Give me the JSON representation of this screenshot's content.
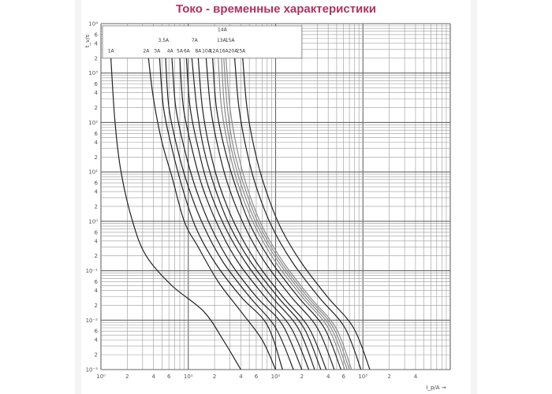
{
  "title": "Токо - временные характеристики",
  "chart_data": {
    "type": "line",
    "title": "Токо - временные характеристики",
    "xlabel": "I_p/A",
    "ylabel": "t_v/s",
    "x_scale": "log",
    "y_scale": "log",
    "xlim": [
      1,
      10000
    ],
    "ylim": [
      0.001,
      10000
    ],
    "grid": true,
    "x_ticks": [
      {
        "v": 1,
        "t": "10⁰"
      },
      {
        "v": 2,
        "t": "2"
      },
      {
        "v": 4,
        "t": "4"
      },
      {
        "v": 6,
        "t": "6"
      },
      {
        "v": 10,
        "t": "10¹"
      },
      {
        "v": 20,
        "t": "2"
      },
      {
        "v": 40,
        "t": "4"
      },
      {
        "v": 60,
        "t": "6"
      },
      {
        "v": 100,
        "t": "10²"
      },
      {
        "v": 200,
        "t": "2"
      },
      {
        "v": 400,
        "t": "4"
      },
      {
        "v": 600,
        "t": "6"
      },
      {
        "v": 1000,
        "t": "10³"
      },
      {
        "v": 2000,
        "t": "2"
      },
      {
        "v": 4000,
        "t": "4"
      }
    ],
    "y_ticks": [
      {
        "v": 10000,
        "t": "10⁴"
      },
      {
        "v": 6000,
        "t": "6"
      },
      {
        "v": 4000,
        "t": "4"
      },
      {
        "v": 2000,
        "t": "2"
      },
      {
        "v": 1000,
        "t": "10³"
      },
      {
        "v": 600,
        "t": "6"
      },
      {
        "v": 400,
        "t": "4"
      },
      {
        "v": 200,
        "t": "2"
      },
      {
        "v": 100,
        "t": "10²"
      },
      {
        "v": 60,
        "t": "6"
      },
      {
        "v": 40,
        "t": "4"
      },
      {
        "v": 20,
        "t": "2"
      },
      {
        "v": 10,
        "t": "10¹"
      },
      {
        "v": 6,
        "t": "6"
      },
      {
        "v": 4,
        "t": "4"
      },
      {
        "v": 2,
        "t": "2"
      },
      {
        "v": 1,
        "t": "10⁰"
      },
      {
        "v": 0.6,
        "t": "6"
      },
      {
        "v": 0.4,
        "t": "4"
      },
      {
        "v": 0.2,
        "t": "2"
      },
      {
        "v": 0.1,
        "t": "10⁻¹"
      },
      {
        "v": 0.06,
        "t": "6"
      },
      {
        "v": 0.04,
        "t": "4"
      },
      {
        "v": 0.02,
        "t": "2"
      },
      {
        "v": 0.01,
        "t": "10⁻²"
      },
      {
        "v": 0.006,
        "t": "6"
      },
      {
        "v": 0.004,
        "t": "4"
      },
      {
        "v": 0.002,
        "t": "2"
      },
      {
        "v": 0.001,
        "t": "10⁻³"
      }
    ],
    "series": [
      {
        "name": "1A",
        "color": "#222222",
        "points": [
          [
            1.3,
            2000
          ],
          [
            1.45,
            100
          ],
          [
            1.7,
            10
          ],
          [
            2.3,
            1
          ],
          [
            3.3,
            0.2
          ],
          [
            6.5,
            0.05
          ],
          [
            15,
            0.015
          ],
          [
            25,
            0.004
          ],
          [
            40,
            0.001
          ]
        ]
      },
      {
        "name": "2A",
        "color": "#222222",
        "points": [
          [
            3.5,
            2000
          ],
          [
            4,
            300
          ],
          [
            5,
            40
          ],
          [
            6.5,
            8
          ],
          [
            9,
            1
          ],
          [
            13,
            0.3
          ],
          [
            22,
            0.06
          ],
          [
            40,
            0.015
          ],
          [
            70,
            0.004
          ],
          [
            100,
            0.001
          ]
        ]
      },
      {
        "name": "3A",
        "color": "#222222",
        "points": [
          [
            4.7,
            2000
          ],
          [
            5.2,
            200
          ],
          [
            6.5,
            30
          ],
          [
            8.5,
            5
          ],
          [
            12,
            0.8
          ],
          [
            20,
            0.15
          ],
          [
            40,
            0.03
          ],
          [
            80,
            0.008
          ],
          [
            120,
            0.001
          ]
        ]
      },
      {
        "name": "3,5A",
        "color": "#222222",
        "points": [
          [
            5.5,
            2000
          ],
          [
            6,
            200
          ],
          [
            7.5,
            30
          ],
          [
            10,
            5
          ],
          [
            15,
            0.8
          ],
          [
            25,
            0.15
          ],
          [
            50,
            0.03
          ],
          [
            100,
            0.007
          ],
          [
            160,
            0.001
          ]
        ]
      },
      {
        "name": "4A",
        "color": "#222222",
        "points": [
          [
            6.5,
            2000
          ],
          [
            7.2,
            200
          ],
          [
            9,
            30
          ],
          [
            12,
            5
          ],
          [
            18,
            0.8
          ],
          [
            30,
            0.15
          ],
          [
            60,
            0.03
          ],
          [
            120,
            0.008
          ],
          [
            200,
            0.001
          ]
        ]
      },
      {
        "name": "5A",
        "color": "#222222",
        "points": [
          [
            8,
            2000
          ],
          [
            8.8,
            200
          ],
          [
            11,
            30
          ],
          [
            14.5,
            5
          ],
          [
            22,
            0.8
          ],
          [
            37,
            0.15
          ],
          [
            75,
            0.03
          ],
          [
            150,
            0.007
          ],
          [
            240,
            0.001
          ]
        ]
      },
      {
        "name": "6A",
        "color": "#222222",
        "points": [
          [
            9.5,
            2000
          ],
          [
            10.5,
            200
          ],
          [
            13,
            30
          ],
          [
            17,
            5
          ],
          [
            26,
            0.8
          ],
          [
            45,
            0.15
          ],
          [
            90,
            0.03
          ],
          [
            180,
            0.007
          ],
          [
            280,
            0.001
          ]
        ]
      },
      {
        "name": "7A",
        "color": "#222222",
        "points": [
          [
            11,
            2000
          ],
          [
            12.5,
            200
          ],
          [
            15,
            30
          ],
          [
            20,
            5
          ],
          [
            30,
            0.8
          ],
          [
            52,
            0.15
          ],
          [
            105,
            0.03
          ],
          [
            210,
            0.007
          ],
          [
            330,
            0.001
          ]
        ]
      },
      {
        "name": "8A",
        "color": "#222222",
        "points": [
          [
            13,
            2000
          ],
          [
            14.5,
            200
          ],
          [
            17.5,
            30
          ],
          [
            23,
            5
          ],
          [
            35,
            0.8
          ],
          [
            60,
            0.15
          ],
          [
            120,
            0.03
          ],
          [
            240,
            0.007
          ],
          [
            380,
            0.001
          ]
        ]
      },
      {
        "name": "10A",
        "color": "#222222",
        "points": [
          [
            16,
            2000
          ],
          [
            18,
            200
          ],
          [
            22,
            30
          ],
          [
            29,
            5
          ],
          [
            44,
            0.8
          ],
          [
            75,
            0.15
          ],
          [
            150,
            0.03
          ],
          [
            300,
            0.007
          ],
          [
            470,
            0.001
          ]
        ]
      },
      {
        "name": "12A",
        "color": "#222222",
        "points": [
          [
            19,
            2000
          ],
          [
            21,
            200
          ],
          [
            26,
            30
          ],
          [
            35,
            5
          ],
          [
            52,
            0.8
          ],
          [
            90,
            0.15
          ],
          [
            180,
            0.03
          ],
          [
            360,
            0.007
          ],
          [
            560,
            0.001
          ]
        ]
      },
      {
        "name": "13A",
        "color": "#8a8a8a",
        "points": [
          [
            22,
            2000
          ],
          [
            24,
            200
          ],
          [
            29,
            30
          ],
          [
            38,
            5
          ],
          [
            58,
            0.8
          ],
          [
            100,
            0.15
          ],
          [
            200,
            0.03
          ],
          [
            400,
            0.007
          ],
          [
            620,
            0.001
          ]
        ]
      },
      {
        "name": "14A",
        "color": "#8a8a8a",
        "points": [
          [
            24,
            2000
          ],
          [
            26,
            200
          ],
          [
            31,
            30
          ],
          [
            41,
            5
          ],
          [
            62,
            0.8
          ],
          [
            108,
            0.15
          ],
          [
            215,
            0.03
          ],
          [
            430,
            0.007
          ],
          [
            660,
            0.001
          ]
        ]
      },
      {
        "name": "15A",
        "color": "#8a8a8a",
        "points": [
          [
            25.5,
            2000
          ],
          [
            28,
            200
          ],
          [
            33,
            30
          ],
          [
            44,
            5
          ],
          [
            66,
            0.8
          ],
          [
            115,
            0.15
          ],
          [
            230,
            0.03
          ],
          [
            460,
            0.007
          ],
          [
            700,
            0.001
          ]
        ]
      },
      {
        "name": "16A",
        "color": "#8a8a8a",
        "points": [
          [
            27,
            2000
          ],
          [
            30,
            200
          ],
          [
            36,
            30
          ],
          [
            47,
            5
          ],
          [
            70,
            0.8
          ],
          [
            122,
            0.15
          ],
          [
            245,
            0.03
          ],
          [
            490,
            0.007
          ],
          [
            740,
            0.001
          ]
        ]
      },
      {
        "name": "20A",
        "color": "#222222",
        "points": [
          [
            34,
            2000
          ],
          [
            38,
            200
          ],
          [
            46,
            30
          ],
          [
            60,
            5
          ],
          [
            90,
            0.8
          ],
          [
            155,
            0.15
          ],
          [
            310,
            0.03
          ],
          [
            620,
            0.007
          ],
          [
            950,
            0.001
          ]
        ]
      },
      {
        "name": "25A",
        "color": "#222222",
        "points": [
          [
            42,
            2000
          ],
          [
            47,
            200
          ],
          [
            57,
            30
          ],
          [
            75,
            5
          ],
          [
            112,
            0.8
          ],
          [
            195,
            0.15
          ],
          [
            390,
            0.03
          ],
          [
            780,
            0.007
          ],
          [
            1200,
            0.001
          ]
        ]
      }
    ],
    "curve_labels": [
      {
        "text": "1A",
        "x": 1.3,
        "y": 2600
      },
      {
        "text": "2A",
        "x": 3.3,
        "y": 2600
      },
      {
        "text": "3,5A",
        "x": 5.2,
        "y": 4300
      },
      {
        "text": "3A",
        "x": 4.4,
        "y": 2600
      },
      {
        "text": "4A",
        "x": 6.2,
        "y": 2600
      },
      {
        "text": "5A",
        "x": 8.0,
        "y": 2600
      },
      {
        "text": "6A",
        "x": 9.6,
        "y": 2600
      },
      {
        "text": "7A",
        "x": 11.8,
        "y": 4300
      },
      {
        "text": "8A",
        "x": 13.0,
        "y": 2600
      },
      {
        "text": "10A",
        "x": 16.2,
        "y": 2600
      },
      {
        "text": "12A",
        "x": 19.8,
        "y": 2600
      },
      {
        "text": "14A",
        "x": 24.5,
        "y": 7000
      },
      {
        "text": "13A",
        "x": 24.0,
        "y": 4300
      },
      {
        "text": "15A",
        "x": 30.0,
        "y": 4300
      },
      {
        "text": "16A",
        "x": 25.5,
        "y": 2600
      },
      {
        "text": "20A",
        "x": 32.5,
        "y": 2600
      },
      {
        "text": "25A",
        "x": 40.0,
        "y": 2600
      }
    ]
  }
}
